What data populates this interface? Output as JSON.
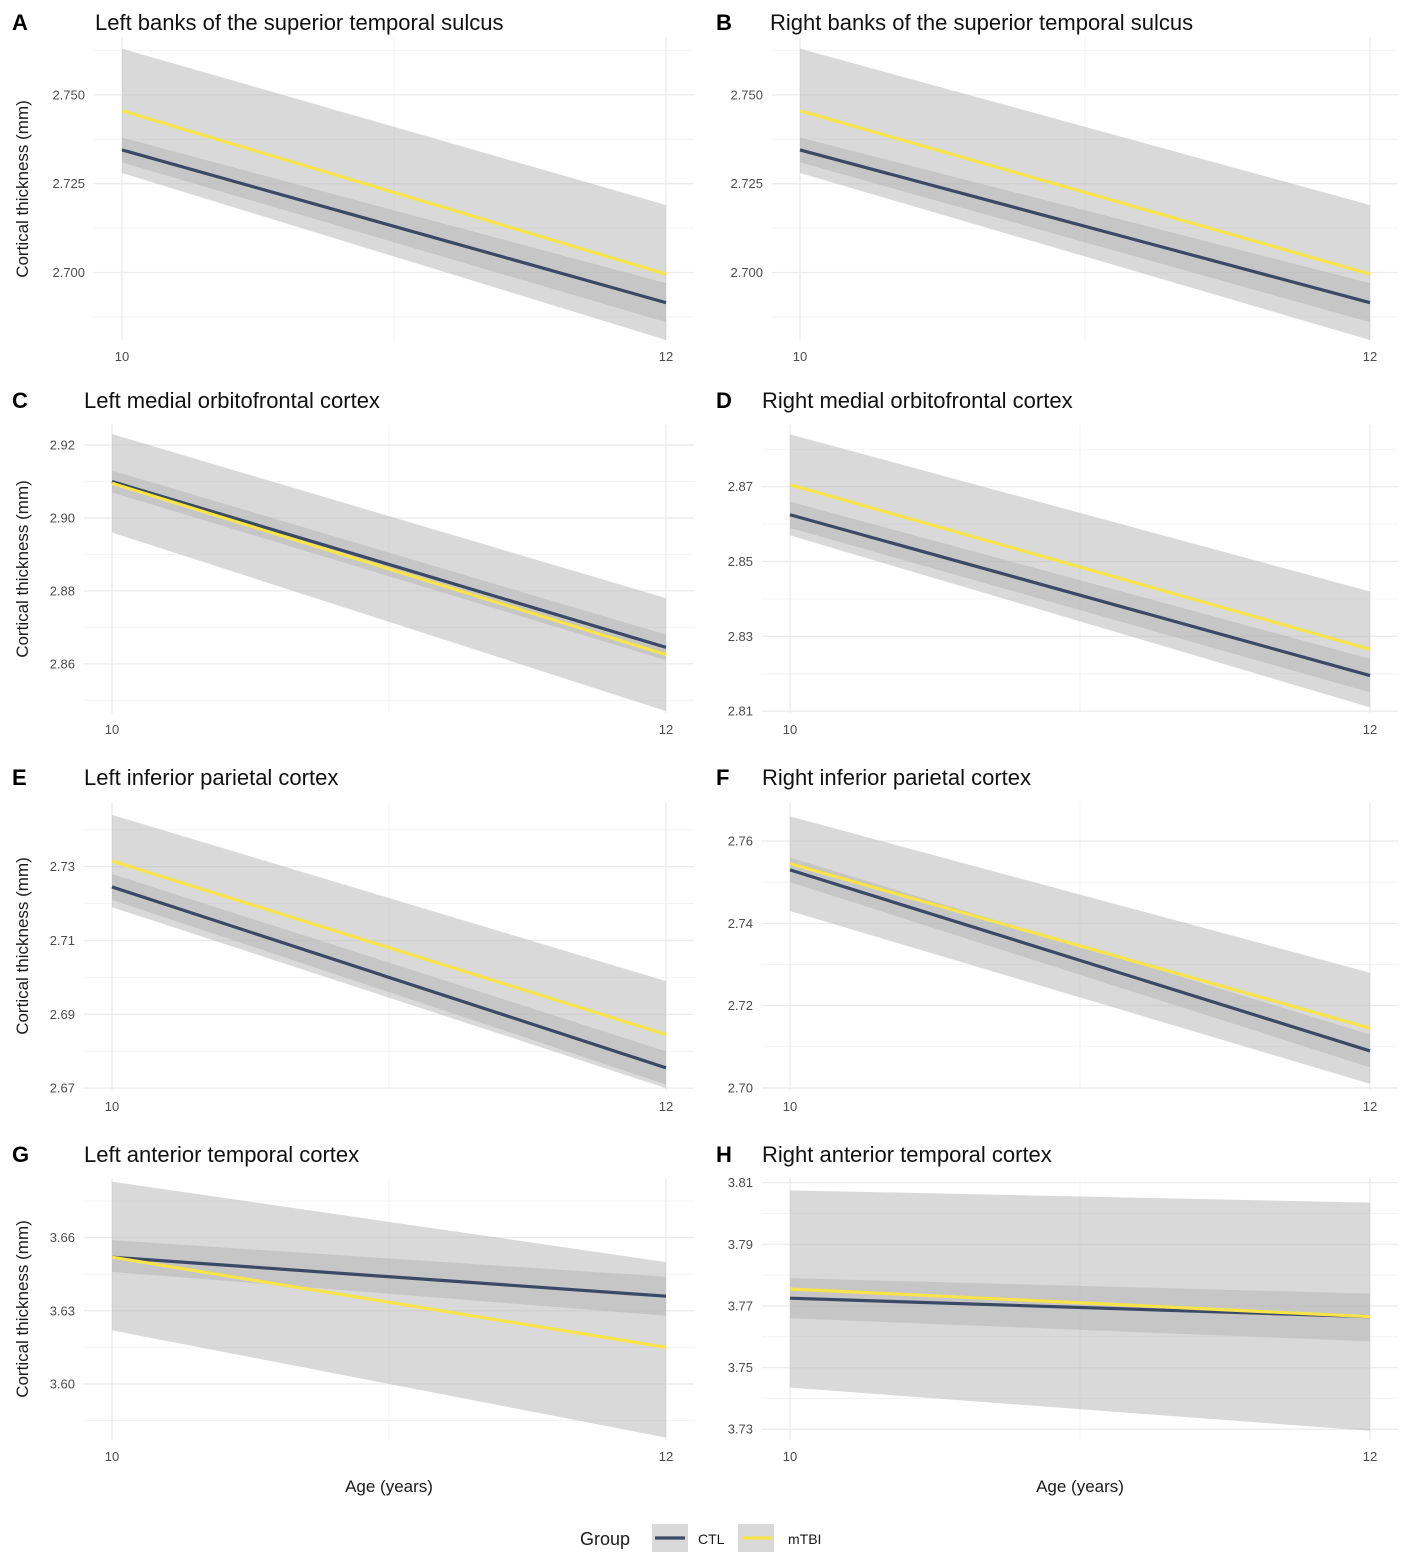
{
  "legend": {
    "title": "Group",
    "items": [
      {
        "label": "CTL",
        "color": "#3a4a66"
      },
      {
        "label": "mTBI",
        "color": "#f7e34a"
      }
    ]
  },
  "ci_fill_color": "#b4b4b4",
  "chart_data": [
    {
      "type": "line",
      "letter": "A",
      "title": "Left banks of the superior temporal sulcus",
      "xlabel": "",
      "ylabel": "Cortical thickness (mm)",
      "xlim": [
        10,
        12
      ],
      "ylim": [
        2.681,
        2.766
      ],
      "xticks": [
        10,
        12
      ],
      "yticks": [
        2.7,
        2.725,
        2.75
      ],
      "ytick_labels": [
        "2.700",
        "2.725",
        "2.750"
      ],
      "series": [
        {
          "name": "CTL",
          "x": [
            10,
            12
          ],
          "y": [
            2.7345,
            2.6915
          ],
          "ci_lower": [
            2.731,
            2.686
          ],
          "ci_upper": [
            2.738,
            2.697
          ]
        },
        {
          "name": "mTBI",
          "x": [
            10,
            12
          ],
          "y": [
            2.7455,
            2.6995
          ],
          "ci_lower": [
            2.728,
            2.681
          ],
          "ci_upper": [
            2.763,
            2.719
          ]
        }
      ]
    },
    {
      "type": "line",
      "letter": "B",
      "title": "Right banks of the superior temporal sulcus",
      "xlabel": "",
      "ylabel": "",
      "xlim": [
        10,
        12
      ],
      "ylim": [
        2.681,
        2.766
      ],
      "xticks": [
        10,
        12
      ],
      "yticks": [
        2.7,
        2.725,
        2.75
      ],
      "ytick_labels": [
        "2.700",
        "2.725",
        "2.750"
      ],
      "series": [
        {
          "name": "CTL",
          "x": [
            10,
            12
          ],
          "y": [
            2.7345,
            2.6915
          ],
          "ci_lower": [
            2.731,
            2.686
          ],
          "ci_upper": [
            2.738,
            2.697
          ]
        },
        {
          "name": "mTBI",
          "x": [
            10,
            12
          ],
          "y": [
            2.7455,
            2.6995
          ],
          "ci_lower": [
            2.728,
            2.681
          ],
          "ci_upper": [
            2.763,
            2.719
          ]
        }
      ]
    },
    {
      "type": "line",
      "letter": "C",
      "title": "Left medial orbitofrontal cortex",
      "xlabel": "",
      "ylabel": "Cortical thickness (mm)",
      "xlim": [
        10,
        12
      ],
      "ylim": [
        2.8465,
        2.9255
      ],
      "xticks": [
        10,
        12
      ],
      "yticks": [
        2.86,
        2.88,
        2.9,
        2.92
      ],
      "ytick_labels": [
        "2.86",
        "2.88",
        "2.90",
        "2.92"
      ],
      "series": [
        {
          "name": "CTL",
          "x": [
            10,
            12
          ],
          "y": [
            2.91,
            2.8645
          ],
          "ci_lower": [
            2.907,
            2.861
          ],
          "ci_upper": [
            2.913,
            2.868
          ]
        },
        {
          "name": "mTBI",
          "x": [
            10,
            12
          ],
          "y": [
            2.9095,
            2.8625
          ],
          "ci_lower": [
            2.896,
            2.847
          ],
          "ci_upper": [
            2.923,
            2.878
          ]
        }
      ]
    },
    {
      "type": "line",
      "letter": "D",
      "title": "Right medial orbitofrontal cortex",
      "xlabel": "",
      "ylabel": "",
      "xlim": [
        10,
        12
      ],
      "ylim": [
        2.8095,
        2.8865
      ],
      "xticks": [
        10,
        12
      ],
      "yticks": [
        2.81,
        2.83,
        2.85,
        2.87
      ],
      "ytick_labels": [
        "2.81",
        "2.83",
        "2.85",
        "2.87"
      ],
      "series": [
        {
          "name": "CTL",
          "x": [
            10,
            12
          ],
          "y": [
            2.8625,
            2.8195
          ],
          "ci_lower": [
            2.859,
            2.815
          ],
          "ci_upper": [
            2.866,
            2.824
          ]
        },
        {
          "name": "mTBI",
          "x": [
            10,
            12
          ],
          "y": [
            2.8705,
            2.8265
          ],
          "ci_lower": [
            2.857,
            2.811
          ],
          "ci_upper": [
            2.884,
            2.842
          ]
        }
      ]
    },
    {
      "type": "line",
      "letter": "E",
      "title": "Left inferior parietal cortex",
      "xlabel": "",
      "ylabel": "Cortical thickness (mm)",
      "xlim": [
        10,
        12
      ],
      "ylim": [
        2.6695,
        2.7475
      ],
      "xticks": [
        10,
        12
      ],
      "yticks": [
        2.67,
        2.69,
        2.71,
        2.73
      ],
      "ytick_labels": [
        "2.67",
        "2.69",
        "2.71",
        "2.73"
      ],
      "series": [
        {
          "name": "CTL",
          "x": [
            10,
            12
          ],
          "y": [
            2.7245,
            2.6755
          ],
          "ci_lower": [
            2.721,
            2.671
          ],
          "ci_upper": [
            2.728,
            2.68
          ]
        },
        {
          "name": "mTBI",
          "x": [
            10,
            12
          ],
          "y": [
            2.7315,
            2.6845
          ],
          "ci_lower": [
            2.719,
            2.67
          ],
          "ci_upper": [
            2.744,
            2.699
          ]
        }
      ]
    },
    {
      "type": "line",
      "letter": "F",
      "title": "Right inferior parietal cortex",
      "xlabel": "",
      "ylabel": "",
      "xlim": [
        10,
        12
      ],
      "ylim": [
        2.6995,
        2.7695
      ],
      "xticks": [
        10,
        12
      ],
      "yticks": [
        2.7,
        2.72,
        2.74,
        2.76
      ],
      "ytick_labels": [
        "2.70",
        "2.72",
        "2.74",
        "2.76"
      ],
      "series": [
        {
          "name": "CTL",
          "x": [
            10,
            12
          ],
          "y": [
            2.753,
            2.709
          ],
          "ci_lower": [
            2.75,
            2.705
          ],
          "ci_upper": [
            2.756,
            2.713
          ]
        },
        {
          "name": "mTBI",
          "x": [
            10,
            12
          ],
          "y": [
            2.7545,
            2.7145
          ],
          "ci_lower": [
            2.743,
            2.701
          ],
          "ci_upper": [
            2.766,
            2.728
          ]
        }
      ]
    },
    {
      "type": "line",
      "letter": "G",
      "title": "Left anterior temporal cortex",
      "xlabel": "Age (years)",
      "ylabel": "Cortical thickness (mm)",
      "xlim": [
        10,
        12
      ],
      "ylim": [
        3.577,
        3.6845
      ],
      "xticks": [
        10,
        12
      ],
      "yticks": [
        3.6,
        3.63,
        3.66
      ],
      "ytick_labels": [
        "3.60",
        "3.63",
        "3.66"
      ],
      "series": [
        {
          "name": "CTL",
          "x": [
            10,
            12
          ],
          "y": [
            3.652,
            3.636
          ],
          "ci_lower": [
            3.646,
            3.628
          ],
          "ci_upper": [
            3.659,
            3.644
          ]
        },
        {
          "name": "mTBI",
          "x": [
            10,
            12
          ],
          "y": [
            3.652,
            3.615
          ],
          "ci_lower": [
            3.622,
            3.578
          ],
          "ci_upper": [
            3.683,
            3.65
          ]
        }
      ]
    },
    {
      "type": "line",
      "letter": "H",
      "title": "Right anterior temporal cortex",
      "xlabel": "Age (years)",
      "ylabel": "",
      "xlim": [
        10,
        12
      ],
      "ylim": [
        3.7265,
        3.8115
      ],
      "xticks": [
        10,
        12
      ],
      "yticks": [
        3.73,
        3.75,
        3.77,
        3.79,
        3.81
      ],
      "ytick_labels": [
        "3.73",
        "3.75",
        "3.77",
        "3.79",
        "3.81"
      ],
      "series": [
        {
          "name": "CTL",
          "x": [
            10,
            12
          ],
          "y": [
            3.7725,
            3.7665
          ],
          "ci_lower": [
            3.766,
            3.7585
          ],
          "ci_upper": [
            3.779,
            3.774
          ]
        },
        {
          "name": "mTBI",
          "x": [
            10,
            12
          ],
          "y": [
            3.7755,
            3.7665
          ],
          "ci_lower": [
            3.7435,
            3.7295
          ],
          "ci_upper": [
            3.8075,
            3.8035
          ]
        }
      ]
    }
  ]
}
